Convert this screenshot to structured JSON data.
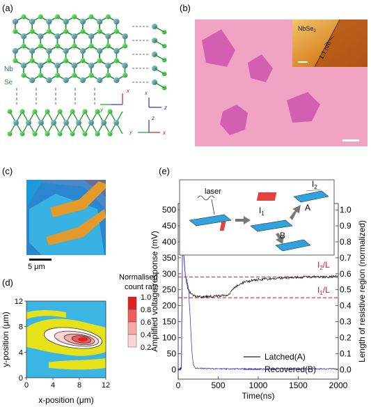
{
  "panels": {
    "a": {
      "label": "(a)",
      "atoms": [
        "Nb",
        "Se"
      ]
    },
    "b": {
      "label": "(b)",
      "inset_material": "NbSe",
      "inset_sub": "2",
      "step_height": "1.1 nm"
    },
    "c": {
      "label": "(c)",
      "scale_bar": "5 μm"
    },
    "d": {
      "label": "(d)",
      "colorbar_title_1": "Normalised",
      "colorbar_title_2": "count rate",
      "colorbar_ticks": [
        "1.0",
        "0.8",
        "0.6",
        "0.4",
        "0.2"
      ],
      "colorbar_colors": [
        "#e0201f",
        "#ef5d5b",
        "#f7a7a5",
        "#fbd6d5",
        "#ffffff"
      ],
      "x_ticks": [
        "0",
        "4",
        "8",
        "12"
      ],
      "y_ticks": [
        "12",
        "8",
        "4",
        "0"
      ],
      "xlabel": "x-position (μm)",
      "ylabel": "y-position (μm)"
    },
    "e": {
      "label": "(e)",
      "inset_laser": "laser",
      "inset_I1": "I",
      "inset_I1_sub": "1",
      "inset_I2": "I",
      "inset_I2_sub": "2",
      "inset_A": "A",
      "inset_B": "B",
      "ref_I2": "I",
      "ref_I2_sub": "2",
      "ref_I2_den": "/L",
      "ref_I1": "I",
      "ref_I1_sub": "1",
      "ref_I1_den": "/L"
    }
  },
  "chart_data": {
    "type": "line",
    "xlabel": "Time(ns)",
    "ylabel": "Amplified voltage response (mV)",
    "y2label": "Length of resistive region (normalized)",
    "xlim": [
      0,
      2000
    ],
    "ylim": [
      -30,
      520
    ],
    "y2lim": [
      -0.06,
      1.04
    ],
    "x_ticks": [
      "0",
      "500",
      "1000",
      "1500",
      "2000"
    ],
    "y_ticks": [
      "0",
      "50",
      "100",
      "150",
      "200",
      "250",
      "300",
      "350",
      "400",
      "450",
      "500"
    ],
    "y2_ticks": [
      "0.0",
      "0.1",
      "0.2",
      "0.3",
      "0.4",
      "0.5",
      "0.6",
      "0.7",
      "0.8",
      "0.9",
      "1.0"
    ],
    "reference_lines": [
      290,
      225
    ],
    "series": [
      {
        "name": "Latched(A)",
        "color": "#222222",
        "x": [
          0,
          40,
          55,
          70,
          90,
          120,
          150,
          200,
          300,
          400,
          500,
          600,
          650,
          700,
          750,
          800,
          900,
          1000,
          1200,
          1400,
          1600,
          1800,
          2000
        ],
        "y": [
          0,
          3,
          440,
          360,
          290,
          255,
          240,
          232,
          228,
          230,
          230,
          232,
          240,
          255,
          265,
          272,
          278,
          282,
          285,
          288,
          290,
          290,
          292
        ]
      },
      {
        "name": "Recovered(B)",
        "color": "#3a3ae0",
        "x": [
          0,
          40,
          55,
          70,
          90,
          110,
          130,
          150,
          170,
          190,
          210,
          300,
          500,
          1000,
          1500,
          2000
        ],
        "y": [
          0,
          3,
          430,
          355,
          290,
          280,
          250,
          160,
          60,
          15,
          5,
          3,
          2,
          2,
          2,
          2
        ]
      }
    ]
  }
}
